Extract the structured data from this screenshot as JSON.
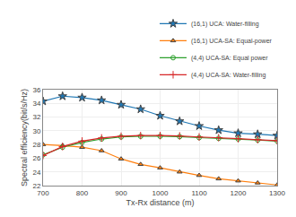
{
  "chart_data": {
    "type": "line",
    "x": [
      700,
      750,
      800,
      850,
      900,
      950,
      1000,
      1050,
      1100,
      1150,
      1200,
      1250,
      1300
    ],
    "series": [
      {
        "name": "(16,1) UCA: Water-filling",
        "marker": "star",
        "values": [
          34.3,
          35.05,
          34.85,
          34.45,
          33.8,
          33.15,
          32.2,
          31.4,
          30.7,
          30.1,
          29.65,
          29.5,
          29.3
        ]
      },
      {
        "name": "(16,1) UCA-SA: Equal-power",
        "marker": "triangle",
        "values": [
          28.0,
          27.85,
          27.6,
          27.1,
          25.9,
          25.1,
          24.6,
          24.0,
          23.5,
          23.0,
          22.7,
          22.4,
          22.1
        ]
      },
      {
        "name": "(4,4) UCA-SA: Equal power",
        "marker": "open-circle",
        "values": [
          26.5,
          27.6,
          28.3,
          28.8,
          29.1,
          29.2,
          29.2,
          29.15,
          29.0,
          28.9,
          28.8,
          28.65,
          28.5
        ]
      },
      {
        "name": "(4,4) UCA-SA: Water-filling",
        "marker": "plus",
        "values": [
          26.4,
          27.7,
          28.5,
          28.95,
          29.2,
          29.3,
          29.3,
          29.25,
          29.1,
          29.0,
          28.85,
          28.7,
          28.55
        ]
      }
    ],
    "xlabel": "Tx-Rx distance (m)",
    "ylabel": "Spectral efficiency(bit/s/Hz)",
    "xlim": [
      700,
      1300
    ],
    "ylim": [
      22,
      36
    ],
    "xticks": [
      700,
      800,
      900,
      1000,
      1100,
      1200,
      1300
    ],
    "yticks": [
      22,
      24,
      26,
      28,
      30,
      32,
      34,
      36
    ],
    "grid": true,
    "legend": "upper right"
  }
}
